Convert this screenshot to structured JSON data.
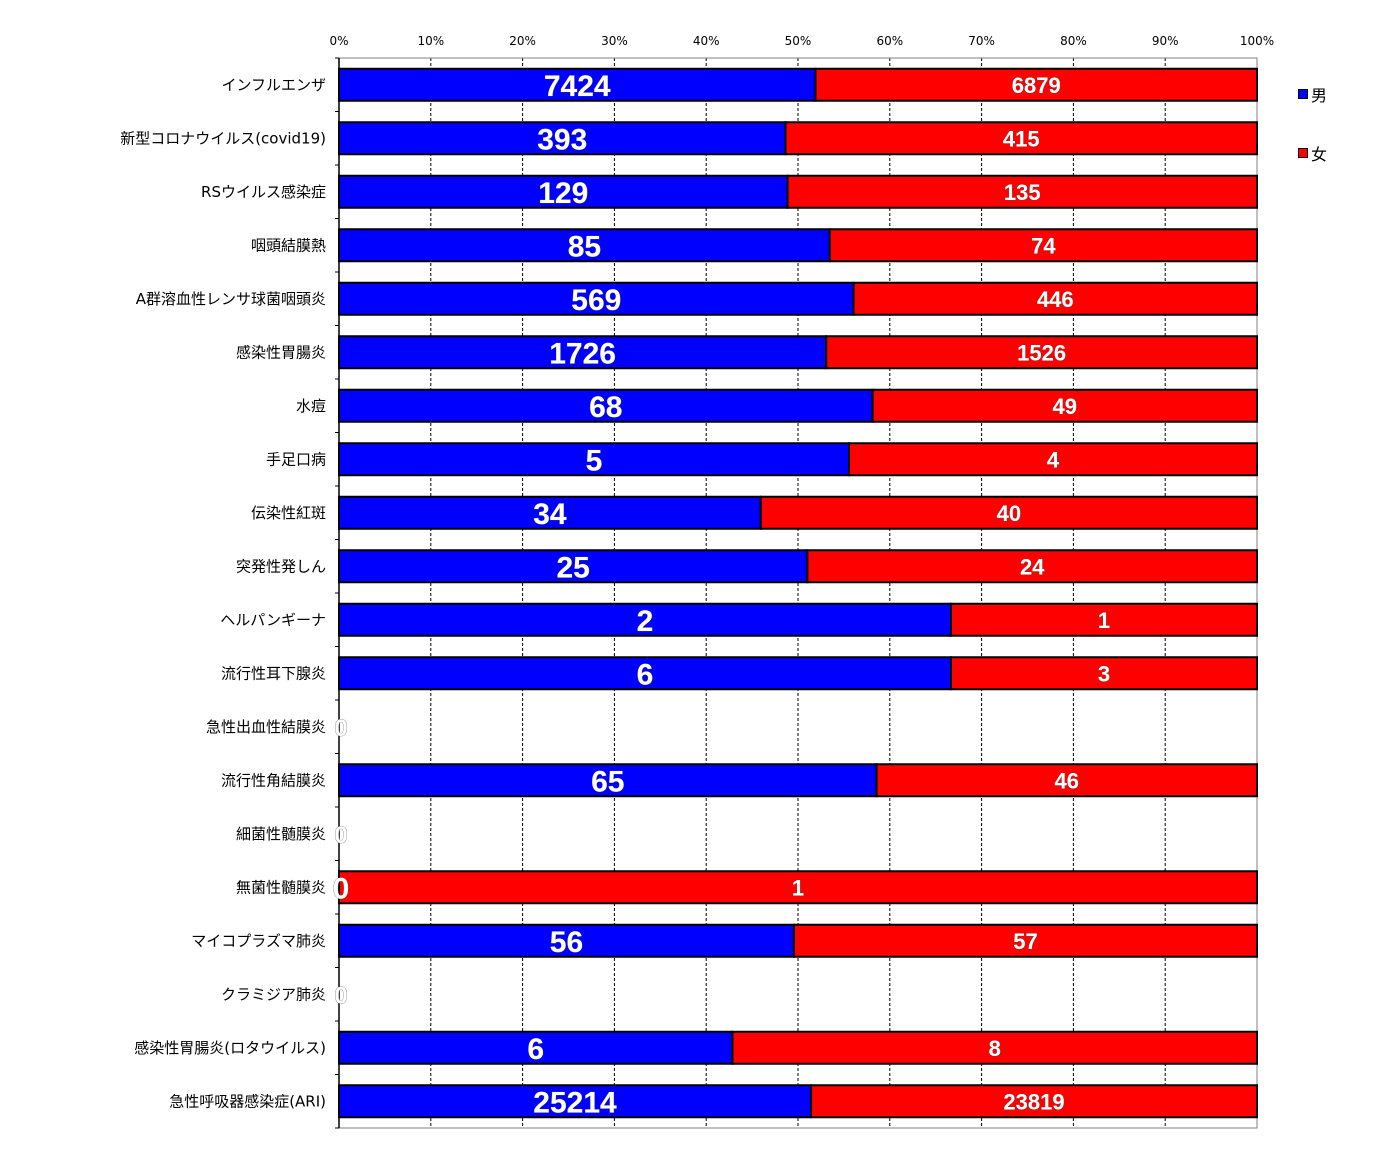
{
  "chart_data": {
    "type": "bar",
    "orientation": "horizontal",
    "stacked": "percent",
    "xlim": [
      0,
      100
    ],
    "x_ticks": [
      "0%",
      "10%",
      "20%",
      "30%",
      "40%",
      "50%",
      "60%",
      "70%",
      "80%",
      "90%",
      "100%"
    ],
    "grid": true,
    "legend_position": "right",
    "categories": [
      "インフルエンザ",
      "新型コロナウイルス(covid19)",
      "RSウイルス感染症",
      "咽頭結膜熱",
      "A群溶血性レンサ球菌咽頭炎",
      "感染性胃腸炎",
      "水痘",
      "手足口病",
      "伝染性紅斑",
      "突発性発しん",
      "ヘルパンギーナ",
      "流行性耳下腺炎",
      "急性出血性結膜炎",
      "流行性角結膜炎",
      "細菌性髄膜炎",
      "無菌性髄膜炎",
      "マイコプラズマ肺炎",
      "クラミジア肺炎",
      "感染性胃腸炎(ロタウイルス)",
      "急性呼吸器感染症(ARI)"
    ],
    "series": [
      {
        "name": "男",
        "color": "#0000FF",
        "values": [
          7424,
          393,
          129,
          85,
          569,
          1726,
          68,
          5,
          34,
          25,
          2,
          6,
          0,
          65,
          0,
          0,
          56,
          0,
          6,
          25214
        ]
      },
      {
        "name": "女",
        "color": "#FF0000",
        "values": [
          6879,
          415,
          135,
          74,
          446,
          1526,
          49,
          4,
          40,
          24,
          1,
          3,
          0,
          46,
          0,
          1,
          57,
          0,
          8,
          23819
        ]
      }
    ]
  }
}
